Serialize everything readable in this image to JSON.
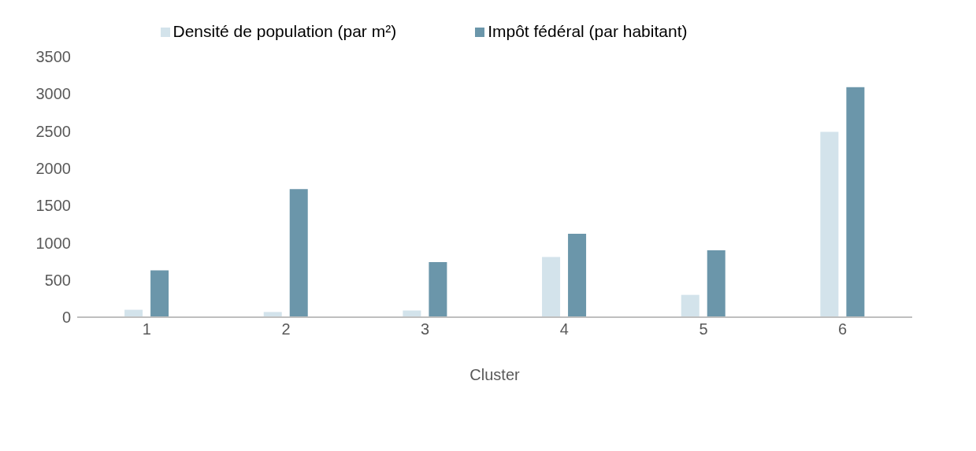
{
  "chart_data": {
    "type": "bar",
    "xlabel": "Cluster",
    "categories": [
      "1",
      "2",
      "3",
      "4",
      "5",
      "6"
    ],
    "series": [
      {
        "name": "Densité de population (par m²)",
        "color": "#d3e3eb",
        "values": [
          100,
          70,
          90,
          810,
          300,
          2490
        ]
      },
      {
        "name": "Impôt fédéral (par habitant)",
        "color": "#6b96aa",
        "values": [
          630,
          1720,
          740,
          1120,
          900,
          3090
        ]
      }
    ],
    "ylim": [
      0,
      3500
    ],
    "yticks": [
      0,
      500,
      1000,
      1500,
      2000,
      2500,
      3000,
      3500
    ],
    "grid": false,
    "legend": "top"
  }
}
